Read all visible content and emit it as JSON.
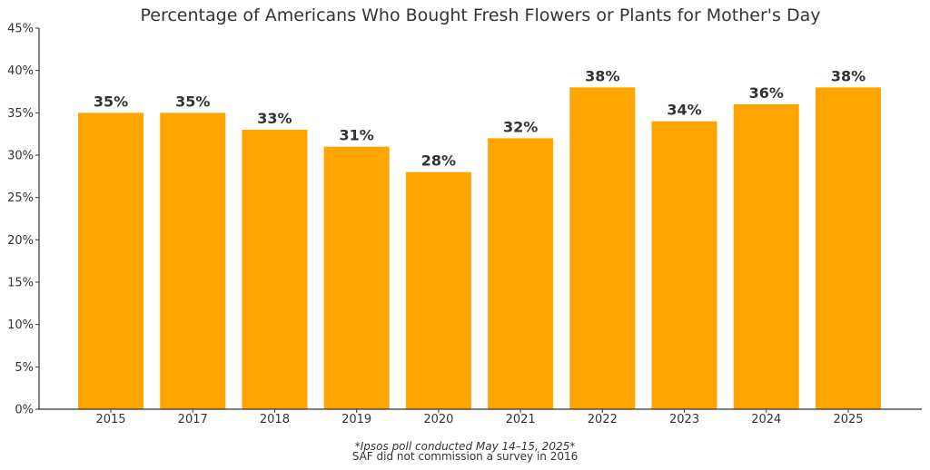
{
  "chart_data": {
    "type": "bar",
    "title": "Percentage of Americans Who Bought Fresh Flowers or Plants for Mother's Day",
    "categories": [
      "2015",
      "2017",
      "2018",
      "2019",
      "2020",
      "2021",
      "2022",
      "2023",
      "2024",
      "2025"
    ],
    "values": [
      35,
      35,
      33,
      31,
      28,
      32,
      38,
      34,
      36,
      38
    ],
    "data_labels": [
      "35%",
      "35%",
      "33%",
      "31%",
      "28%",
      "32%",
      "38%",
      "34%",
      "36%",
      "38%"
    ],
    "y_ticks": [
      "0%",
      "5%",
      "10%",
      "15%",
      "20%",
      "25%",
      "30%",
      "35%",
      "40%",
      "45%"
    ],
    "ylim": [
      0,
      45
    ],
    "xlabel": "",
    "ylabel": "",
    "grid": false,
    "bar_color": "#FFA500",
    "text_color": "#333333"
  },
  "footnotes": {
    "poll_note": "*Ipsos poll conducted May 14–15, 2025*",
    "survey_note": "SAF did not commission a survey in 2016"
  }
}
